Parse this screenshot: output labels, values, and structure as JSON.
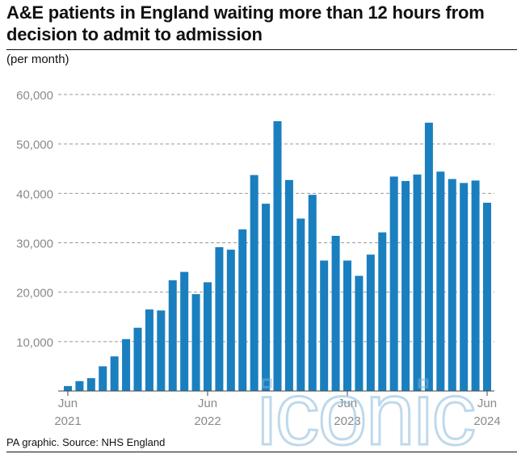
{
  "header": {
    "title": "A&E patients in England waiting more than 12 hours from decision to admit to admission",
    "subtitle": "(per month)"
  },
  "footer": {
    "source": "PA graphic. Source: NHS England"
  },
  "watermark": {
    "text": "iconic"
  },
  "colors": {
    "bar": "#1a7fbf",
    "grid": "#999999",
    "axis_text": "#8a8a8a"
  },
  "chart_data": {
    "type": "bar",
    "title": "A&E patients in England waiting more than 12 hours from decision to admit to admission",
    "subtitle": "(per month)",
    "xlabel": "",
    "ylabel": "",
    "ylim": [
      0,
      60000
    ],
    "yticks": [
      10000,
      20000,
      30000,
      40000,
      50000,
      60000
    ],
    "ytick_labels": [
      "10,000",
      "20,000",
      "30,000",
      "40,000",
      "50,000",
      "60,000"
    ],
    "grid": "horizontal dashed",
    "x_tick_labels": [
      {
        "index": 0,
        "month": "Jun",
        "year": "2021"
      },
      {
        "index": 12,
        "month": "Jun",
        "year": "2022"
      },
      {
        "index": 24,
        "month": "Jun",
        "year": "2023"
      },
      {
        "index": 36,
        "month": "Jun",
        "year": "2024"
      }
    ],
    "categories": [
      "2021-06",
      "2021-07",
      "2021-08",
      "2021-09",
      "2021-10",
      "2021-11",
      "2021-12",
      "2022-01",
      "2022-02",
      "2022-03",
      "2022-04",
      "2022-05",
      "2022-06",
      "2022-07",
      "2022-08",
      "2022-09",
      "2022-10",
      "2022-11",
      "2022-12",
      "2023-01",
      "2023-02",
      "2023-03",
      "2023-04",
      "2023-05",
      "2023-06",
      "2023-07",
      "2023-08",
      "2023-09",
      "2023-10",
      "2023-11",
      "2023-12",
      "2024-01",
      "2024-02",
      "2024-03",
      "2024-04",
      "2024-05",
      "2024-06"
    ],
    "values": [
      1000,
      2000,
      2600,
      5000,
      7000,
      10500,
      12800,
      16500,
      16300,
      22400,
      24100,
      19600,
      22000,
      29100,
      28600,
      32700,
      43700,
      37900,
      54600,
      42700,
      34900,
      39700,
      26400,
      31400,
      26400,
      23300,
      27600,
      32100,
      43400,
      42500,
      43800,
      54300,
      44400,
      42900,
      42100,
      42600,
      38100
    ]
  }
}
